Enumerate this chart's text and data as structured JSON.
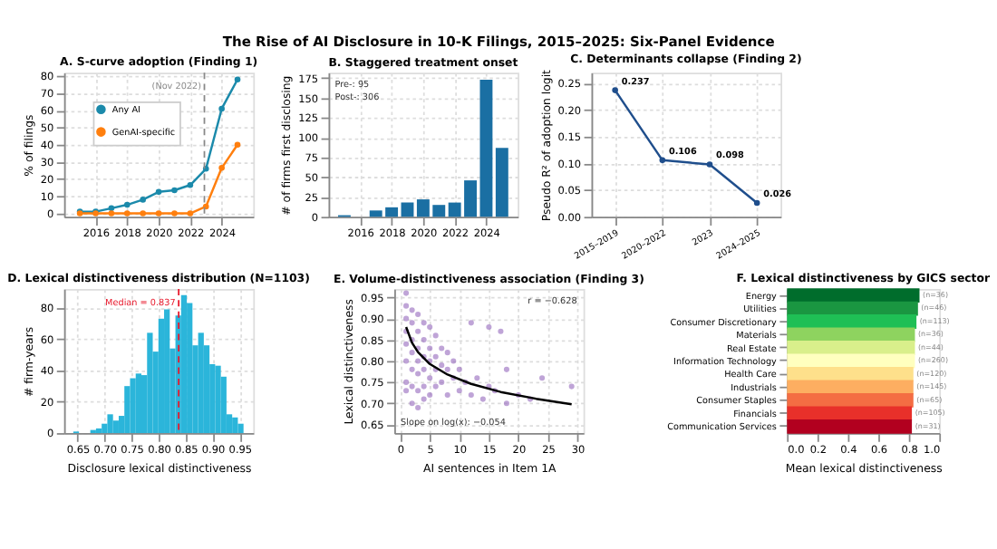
{
  "chart_data": [
    {
      "type": "line",
      "title": "A. S-curve adoption (Finding 1)",
      "ylabel": "% of filings",
      "x": [
        2015,
        2016,
        2017,
        2018,
        2019,
        2020,
        2021,
        2022,
        2023,
        2024,
        2025
      ],
      "series": [
        {
          "name": "Any AI",
          "color": "#1b8aab",
          "values": [
            1,
            1,
            3,
            5,
            8,
            12.5,
            13.5,
            16.5,
            26,
            61,
            78
          ]
        },
        {
          "name": "GenAI-specific",
          "color": "#ff7f0e",
          "values": [
            0,
            0,
            0,
            0,
            0,
            0,
            0,
            0,
            4,
            26.5,
            40
          ]
        }
      ],
      "xlim": [
        2014,
        2026
      ],
      "xticks": [
        2016,
        2018,
        2020,
        2022,
        2024
      ],
      "ylim": [
        -2,
        82
      ],
      "yticks": [
        0,
        10,
        20,
        30,
        40,
        50,
        60,
        70,
        80
      ],
      "grid": true,
      "legend": "top left",
      "marker": "circle",
      "ref_lines": [
        {
          "axis": "x",
          "value": 2022.9,
          "label": "(Nov 2022)",
          "color": "#888888",
          "line_style": "dashed"
        }
      ]
    },
    {
      "type": "bar",
      "title": "B. Staggered treatment onset",
      "ylabel": "# of firms first disclosing",
      "x": [
        2015,
        2016,
        2017,
        2018,
        2019,
        2020,
        2021,
        2022,
        2023,
        2024,
        2025
      ],
      "values": [
        2,
        0,
        8,
        12,
        18,
        22,
        15,
        18,
        46,
        173,
        87
      ],
      "color": "#1a6fa3",
      "xlim": [
        2014,
        2026
      ],
      "xticks": [
        2016,
        2018,
        2020,
        2022,
        2024
      ],
      "ylim": [
        0,
        182
      ],
      "yticks": [
        0,
        25,
        50,
        75,
        100,
        125,
        150,
        175
      ],
      "grid": true,
      "annotations": [
        "Pre-: 95",
        "Post-: 306"
      ]
    },
    {
      "type": "line",
      "title": "C. Determinants collapse (Finding 2)",
      "ylabel": "Pseudo R² of adoption logit",
      "categories": [
        "2015–2019",
        "2020–2022",
        "2023",
        "2024–2025"
      ],
      "series": [
        {
          "color": "#1f4e8c",
          "values": [
            0.237,
            0.106,
            0.098,
            0.026
          ]
        }
      ],
      "ylim": [
        0,
        0.27
      ],
      "yticks": [
        {
          "value": 0,
          "label": "0.00"
        },
        0.05,
        {
          "value": 0.1,
          "label": "0.10"
        },
        0.15,
        {
          "value": 0.2,
          "label": "0.20"
        },
        0.25
      ],
      "grid": true,
      "marker": "circle",
      "data_labels": true
    },
    {
      "type": "histogram",
      "title": "D. Lexical distinctiveness distribution (N=1103)",
      "xlabel": "Disclosure lexical distinctiveness",
      "ylabel": "# firm-years",
      "bins": [
        0.642,
        0.6525,
        0.663,
        0.6735,
        0.684,
        0.6945,
        0.705,
        0.7155,
        0.726,
        0.7365,
        0.747,
        0.7575,
        0.768,
        0.7785,
        0.789,
        0.7995,
        0.81,
        0.8205,
        0.831,
        0.8415,
        0.852,
        0.8625,
        0.873,
        0.8835,
        0.894,
        0.9045,
        0.915,
        0.9255,
        0.936,
        0.9465,
        0.957
      ],
      "values": [
        1,
        0,
        0,
        2,
        3,
        6,
        12,
        8,
        11,
        30,
        35,
        38,
        37,
        64,
        52,
        73,
        79,
        54,
        75,
        88,
        83,
        56,
        64,
        56,
        44,
        43,
        36,
        12,
        10,
        6
      ],
      "color": "#2bb5da",
      "xlim": [
        0.625,
        0.975
      ],
      "xticks": [
        0.65,
        {
          "value": 0.7,
          "label": "0.70"
        },
        0.75,
        {
          "value": 0.8,
          "label": "0.80"
        },
        0.85,
        {
          "value": 0.9,
          "label": "0.90"
        },
        0.95
      ],
      "ylim": [
        0,
        92
      ],
      "yticks": [
        0,
        20,
        40,
        60,
        80
      ],
      "grid": true,
      "ref_lines": [
        {
          "axis": "x",
          "value": 0.837,
          "label": "Median = 0.837",
          "color": "#e8192c",
          "line_style": "dashed"
        }
      ]
    },
    {
      "type": "scatter",
      "title": "E. Volume-distinctiveness association (Finding 3)",
      "xlabel": "AI sentences in Item 1A",
      "ylabel": "Lexical distinctiveness",
      "series": [
        {
          "type": "scatter",
          "color": "#9467bd",
          "x": [
            1,
            1,
            1,
            1,
            1,
            1,
            1,
            2,
            2,
            2,
            2,
            2,
            2,
            3,
            3,
            3,
            3,
            3,
            3,
            4,
            4,
            4,
            4,
            4,
            5,
            5,
            5,
            5,
            5,
            6,
            6,
            6,
            6,
            7,
            7,
            7,
            8,
            8,
            8,
            9,
            9,
            10,
            10,
            11,
            12,
            12,
            13,
            14,
            15,
            15,
            16,
            17,
            18,
            18,
            20,
            22,
            24,
            29,
            2,
            3,
            1,
            4
          ],
          "values": [
            0.96,
            0.93,
            0.9,
            0.87,
            0.84,
            0.8,
            0.75,
            0.92,
            0.89,
            0.85,
            0.82,
            0.78,
            0.74,
            0.91,
            0.87,
            0.83,
            0.8,
            0.77,
            0.73,
            0.89,
            0.85,
            0.81,
            0.78,
            0.74,
            0.88,
            0.83,
            0.8,
            0.76,
            0.72,
            0.86,
            0.81,
            0.78,
            0.74,
            0.83,
            0.79,
            0.75,
            0.82,
            0.78,
            0.72,
            0.8,
            0.76,
            0.78,
            0.73,
            0.75,
            0.89,
            0.72,
            0.76,
            0.71,
            0.88,
            0.74,
            0.73,
            0.87,
            0.78,
            0.7,
            0.72,
            0.71,
            0.76,
            0.74,
            0.7,
            0.69,
            0.73,
            0.71
          ]
        },
        {
          "type": "line",
          "color": "#000000",
          "x": [
            1,
            2,
            3,
            5,
            8,
            12,
            17,
            23,
            29
          ],
          "values": [
            0.88,
            0.843,
            0.821,
            0.793,
            0.768,
            0.746,
            0.727,
            0.711,
            0.698
          ]
        }
      ],
      "xlim": [
        -1,
        31
      ],
      "xticks": [
        0,
        5,
        10,
        15,
        20,
        25,
        30
      ],
      "ylim": [
        0.63,
        0.97
      ],
      "yticks": [
        0.65,
        {
          "value": 0.7,
          "label": "0.70"
        },
        0.75,
        {
          "value": 0.8,
          "label": "0.80"
        },
        0.85,
        {
          "value": 0.9,
          "label": "0.90"
        },
        0.95
      ],
      "grid": true,
      "annotations": [
        "r = −0.628",
        "Slope on log(x): −0.054"
      ]
    },
    {
      "type": "bar",
      "orientation": "horizontal",
      "title": "F. Lexical distinctiveness by GICS sector",
      "xlabel": "Mean lexical distinctiveness",
      "categories": [
        "Energy",
        "Utilities",
        "Consumer Discretionary",
        "Materials",
        "Real Estate",
        "Information Technology",
        "Health Care",
        "Industrials",
        "Consumer Staples",
        "Financials",
        "Communication Services"
      ],
      "values": [
        0.87,
        0.86,
        0.85,
        0.84,
        0.84,
        0.84,
        0.83,
        0.83,
        0.83,
        0.82,
        0.82
      ],
      "colors": [
        "#006d2c",
        "#1a9641",
        "#1fbf55",
        "#8ed35f",
        "#d9ef8b",
        "#ffffbf",
        "#fee08b",
        "#fdae61",
        "#f46d43",
        "#e8302a",
        "#b2001f"
      ],
      "annotations": [
        {
          "text": "(n=36)",
          "x": 0.87,
          "y": "Energy"
        },
        {
          "text": "(n=46)",
          "x": 0.86,
          "y": "Utilities"
        },
        {
          "text": "(n=113)",
          "x": 0.85,
          "y": "Consumer Discretionary"
        },
        {
          "text": "(n=36)",
          "x": 0.84,
          "y": "Materials"
        },
        {
          "text": "(n=44)",
          "x": 0.84,
          "y": "Real Estate"
        },
        {
          "text": "(n=260)",
          "x": 0.84,
          "y": "Information Technology"
        },
        {
          "text": "(n=120)",
          "x": 0.83,
          "y": "Health Care"
        },
        {
          "text": "(n=145)",
          "x": 0.83,
          "y": "Industrials"
        },
        {
          "text": "(n=65)",
          "x": 0.83,
          "y": "Consumer Staples"
        },
        {
          "text": "(n=105)",
          "x": 0.82,
          "y": "Financials"
        },
        {
          "text": "(n=31)",
          "x": 0.82,
          "y": "Communication Services"
        }
      ],
      "xlim": [
        0,
        1
      ],
      "xticks": [
        {
          "value": 0,
          "label": "0.0"
        },
        0.2,
        0.4,
        0.6,
        0.8,
        {
          "value": 1,
          "label": "1.0"
        }
      ]
    },
    {
      "type": "other",
      "title": "The Rise of AI Disclosure in 10-K Filings, 2015–2025: Six-Panel Evidence"
    }
  ]
}
